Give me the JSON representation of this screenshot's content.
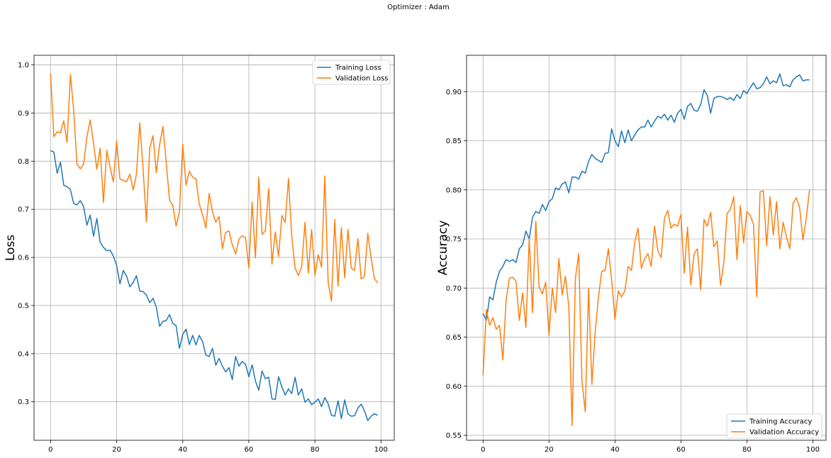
{
  "figure": {
    "suptitle": "Optimizer : Adam",
    "colors": {
      "blue": "#1f77b4",
      "orange": "#ff7f0e",
      "grid": "#b0b0b0"
    }
  },
  "chart_data": [
    {
      "type": "line",
      "title": "",
      "xlabel": "",
      "ylabel": "Loss",
      "xlim": [
        -5,
        104
      ],
      "ylim": [
        0.22,
        1.02
      ],
      "xticks": [
        0,
        20,
        40,
        60,
        80,
        100
      ],
      "yticks": [
        0.3,
        0.4,
        0.5,
        0.6,
        0.7,
        0.8,
        0.9,
        1.0
      ],
      "ytick_decimals": 1,
      "grid": true,
      "legend_loc": "upper right",
      "series": [
        {
          "name": "Training Loss",
          "color": "#1f77b4",
          "values": [
            0.822,
            0.819,
            0.775,
            0.798,
            0.75,
            0.747,
            0.741,
            0.712,
            0.709,
            0.718,
            0.706,
            0.667,
            0.688,
            0.644,
            0.681,
            0.632,
            0.621,
            0.614,
            0.615,
            0.603,
            0.583,
            0.545,
            0.573,
            0.561,
            0.539,
            0.548,
            0.562,
            0.53,
            0.529,
            0.522,
            0.506,
            0.515,
            0.497,
            0.457,
            0.467,
            0.469,
            0.481,
            0.463,
            0.458,
            0.411,
            0.44,
            0.451,
            0.419,
            0.438,
            0.418,
            0.438,
            0.425,
            0.397,
            0.394,
            0.411,
            0.376,
            0.39,
            0.374,
            0.362,
            0.371,
            0.346,
            0.394,
            0.374,
            0.384,
            0.378,
            0.352,
            0.377,
            0.343,
            0.324,
            0.364,
            0.348,
            0.351,
            0.306,
            0.305,
            0.352,
            0.331,
            0.314,
            0.327,
            0.317,
            0.351,
            0.314,
            0.327,
            0.299,
            0.306,
            0.294,
            0.299,
            0.306,
            0.29,
            0.309,
            0.296,
            0.272,
            0.27,
            0.302,
            0.265,
            0.304,
            0.275,
            0.27,
            0.271,
            0.287,
            0.295,
            0.281,
            0.261,
            0.27,
            0.275,
            0.272
          ]
        },
        {
          "name": "Validation Loss",
          "color": "#ff7f0e",
          "values": [
            0.982,
            0.851,
            0.861,
            0.859,
            0.884,
            0.839,
            0.98,
            0.906,
            0.794,
            0.784,
            0.794,
            0.85,
            0.886,
            0.838,
            0.783,
            0.827,
            0.714,
            0.822,
            0.788,
            0.757,
            0.842,
            0.763,
            0.76,
            0.757,
            0.773,
            0.74,
            0.773,
            0.88,
            0.784,
            0.674,
            0.827,
            0.853,
            0.776,
            0.834,
            0.872,
            0.798,
            0.719,
            0.708,
            0.665,
            0.695,
            0.835,
            0.75,
            0.779,
            0.767,
            0.763,
            0.711,
            0.689,
            0.661,
            0.733,
            0.695,
            0.673,
            0.685,
            0.618,
            0.652,
            0.655,
            0.626,
            0.607,
            0.638,
            0.645,
            0.641,
            0.578,
            0.715,
            0.599,
            0.767,
            0.648,
            0.655,
            0.743,
            0.586,
            0.653,
            0.602,
            0.687,
            0.673,
            0.764,
            0.643,
            0.578,
            0.562,
            0.581,
            0.673,
            0.568,
            0.658,
            0.563,
            0.606,
            0.58,
            0.769,
            0.549,
            0.509,
            0.679,
            0.54,
            0.662,
            0.558,
            0.658,
            0.578,
            0.573,
            0.639,
            0.555,
            0.561,
            0.65,
            0.599,
            0.556,
            0.547
          ]
        }
      ]
    },
    {
      "type": "line",
      "title": "",
      "xlabel": "",
      "ylabel": "Accuracy",
      "xlim": [
        -5,
        104
      ],
      "ylim": [
        0.545,
        0.937
      ],
      "xticks": [
        0,
        20,
        40,
        60,
        80,
        100
      ],
      "yticks": [
        0.55,
        0.6,
        0.65,
        0.7,
        0.75,
        0.8,
        0.85,
        0.9
      ],
      "ytick_decimals": 2,
      "grid": true,
      "legend_loc": "lower right",
      "series": [
        {
          "name": "Training Accuracy",
          "color": "#1f77b4",
          "values": [
            0.674,
            0.667,
            0.691,
            0.688,
            0.706,
            0.717,
            0.722,
            0.729,
            0.727,
            0.729,
            0.726,
            0.74,
            0.744,
            0.758,
            0.75,
            0.772,
            0.778,
            0.776,
            0.785,
            0.779,
            0.788,
            0.791,
            0.802,
            0.8,
            0.806,
            0.808,
            0.797,
            0.813,
            0.813,
            0.811,
            0.819,
            0.817,
            0.829,
            0.836,
            0.832,
            0.83,
            0.828,
            0.837,
            0.838,
            0.862,
            0.85,
            0.844,
            0.86,
            0.848,
            0.861,
            0.85,
            0.856,
            0.861,
            0.864,
            0.864,
            0.871,
            0.864,
            0.87,
            0.875,
            0.873,
            0.877,
            0.871,
            0.876,
            0.869,
            0.878,
            0.882,
            0.872,
            0.885,
            0.888,
            0.881,
            0.88,
            0.887,
            0.902,
            0.896,
            0.878,
            0.893,
            0.895,
            0.895,
            0.894,
            0.892,
            0.894,
            0.891,
            0.897,
            0.893,
            0.901,
            0.898,
            0.904,
            0.909,
            0.903,
            0.904,
            0.908,
            0.915,
            0.908,
            0.911,
            0.909,
            0.918,
            0.906,
            0.907,
            0.905,
            0.912,
            0.915,
            0.917,
            0.911,
            0.912,
            0.912
          ]
        },
        {
          "name": "Validation Accuracy",
          "color": "#ff7f0e",
          "values": [
            0.611,
            0.678,
            0.662,
            0.67,
            0.658,
            0.662,
            0.627,
            0.688,
            0.71,
            0.711,
            0.707,
            0.667,
            0.695,
            0.66,
            0.75,
            0.675,
            0.768,
            0.701,
            0.694,
            0.706,
            0.652,
            0.7,
            0.675,
            0.73,
            0.693,
            0.712,
            0.681,
            0.56,
            0.71,
            0.735,
            0.605,
            0.574,
            0.7,
            0.602,
            0.655,
            0.691,
            0.717,
            0.718,
            0.74,
            0.708,
            0.668,
            0.697,
            0.691,
            0.697,
            0.722,
            0.718,
            0.747,
            0.761,
            0.72,
            0.73,
            0.735,
            0.722,
            0.763,
            0.738,
            0.731,
            0.771,
            0.779,
            0.761,
            0.765,
            0.763,
            0.775,
            0.715,
            0.762,
            0.703,
            0.735,
            0.74,
            0.698,
            0.77,
            0.763,
            0.777,
            0.742,
            0.748,
            0.703,
            0.726,
            0.776,
            0.78,
            0.793,
            0.729,
            0.784,
            0.746,
            0.778,
            0.774,
            0.765,
            0.691,
            0.798,
            0.799,
            0.743,
            0.793,
            0.754,
            0.788,
            0.74,
            0.767,
            0.752,
            0.74,
            0.786,
            0.792,
            0.782,
            0.749,
            0.771,
            0.8
          ]
        }
      ]
    }
  ]
}
